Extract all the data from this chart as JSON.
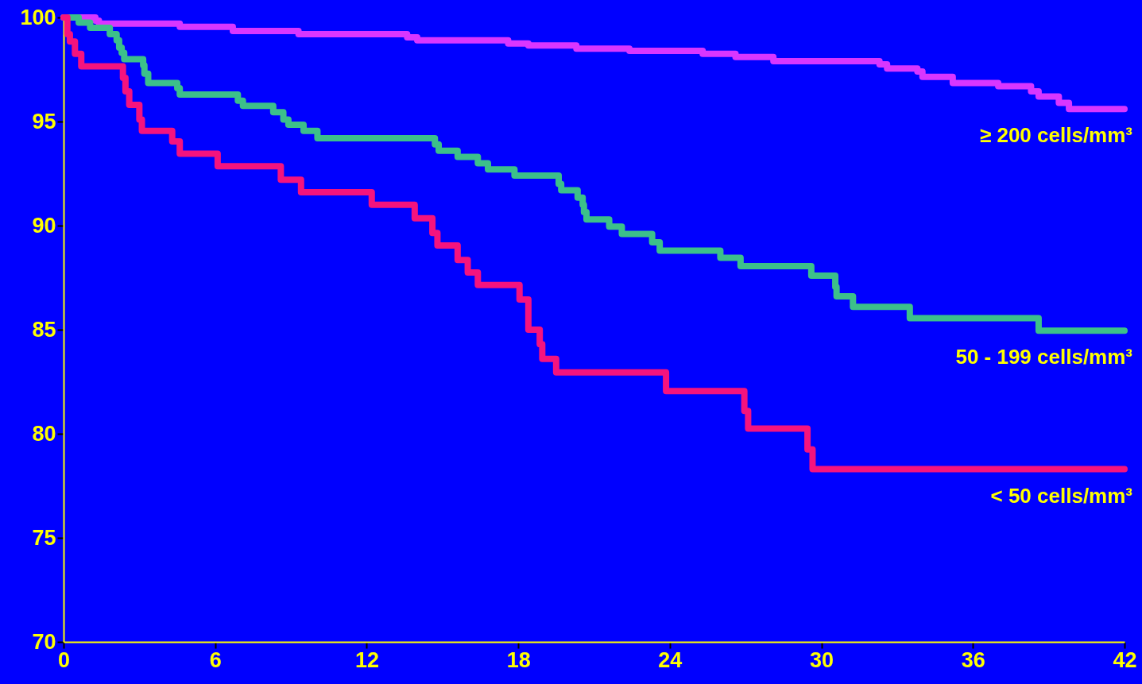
{
  "chart_data": {
    "type": "step",
    "line_style": "solid",
    "series": [
      {
        "name": "≥ 200 cells/mm³",
        "color": "#d936ff",
        "x": [
          0,
          1.26,
          1.4,
          4.6,
          6.7,
          9.3,
          13.6,
          14.0,
          17.6,
          18.4,
          20.3,
          22.4,
          25.3,
          26.6,
          28.1,
          32.3,
          32.6,
          33.8,
          34.0,
          35.2,
          37.0,
          38.3,
          38.6,
          39.4,
          39.8,
          42
        ],
        "values": [
          100,
          99.85,
          99.7,
          99.55,
          99.35,
          99.2,
          99.05,
          98.9,
          98.75,
          98.65,
          98.5,
          98.4,
          98.25,
          98.1,
          97.9,
          97.75,
          97.55,
          97.4,
          97.15,
          96.85,
          96.7,
          96.45,
          96.2,
          95.9,
          95.6,
          95.6
        ]
      },
      {
        "name": "50 - 199 cells/mm³",
        "color": "#3cc08a",
        "x": [
          0,
          0.6,
          1.05,
          1.83,
          2.1,
          2.2,
          2.3,
          2.4,
          3.15,
          3.2,
          3.35,
          4.5,
          4.6,
          6.9,
          7.1,
          8.3,
          8.7,
          8.9,
          9.5,
          10.05,
          14.7,
          14.85,
          15.6,
          16.4,
          16.8,
          17.85,
          19.6,
          19.7,
          20.35,
          20.55,
          20.6,
          20.7,
          21.6,
          22.1,
          23.3,
          23.6,
          26.0,
          26.8,
          29.6,
          30.55,
          30.6,
          31.25,
          33.5,
          38.6,
          42
        ],
        "values": [
          100,
          99.75,
          99.5,
          99.2,
          98.9,
          98.55,
          98.3,
          98.0,
          97.7,
          97.3,
          96.85,
          96.6,
          96.3,
          96.0,
          95.75,
          95.45,
          95.1,
          94.85,
          94.55,
          94.2,
          93.9,
          93.6,
          93.3,
          93.0,
          92.7,
          92.4,
          92.0,
          91.7,
          91.35,
          91.0,
          90.65,
          90.3,
          89.95,
          89.6,
          89.2,
          88.8,
          88.45,
          88.05,
          87.6,
          87.05,
          86.6,
          86.1,
          85.55,
          84.95,
          84.95
        ]
      },
      {
        "name": "< 50 cells/mm³",
        "color": "#f5137e",
        "x": [
          0,
          0.15,
          0.25,
          0.45,
          0.7,
          2.35,
          2.45,
          2.6,
          3.0,
          3.1,
          4.3,
          4.6,
          6.1,
          8.6,
          9.4,
          12.2,
          13.9,
          14.6,
          14.8,
          15.6,
          16.0,
          16.4,
          18.05,
          18.4,
          18.85,
          18.95,
          19.5,
          23.85,
          26.95,
          27.1,
          29.45,
          29.65,
          42
        ],
        "values": [
          100,
          99.2,
          98.85,
          98.25,
          97.65,
          97.1,
          96.45,
          95.8,
          95.1,
          94.55,
          94.05,
          93.45,
          92.85,
          92.2,
          91.6,
          91.0,
          90.35,
          89.65,
          89.05,
          88.35,
          87.75,
          87.15,
          86.45,
          85.0,
          84.3,
          83.6,
          82.95,
          82.05,
          81.1,
          80.25,
          79.25,
          78.3,
          78.3
        ]
      }
    ],
    "xlim": [
      0,
      42
    ],
    "xticks": [
      0,
      6,
      12,
      18,
      24,
      30,
      36,
      42
    ],
    "ylim": [
      70,
      100
    ],
    "yticks": [
      70,
      75,
      80,
      85,
      90,
      95,
      100
    ]
  }
}
